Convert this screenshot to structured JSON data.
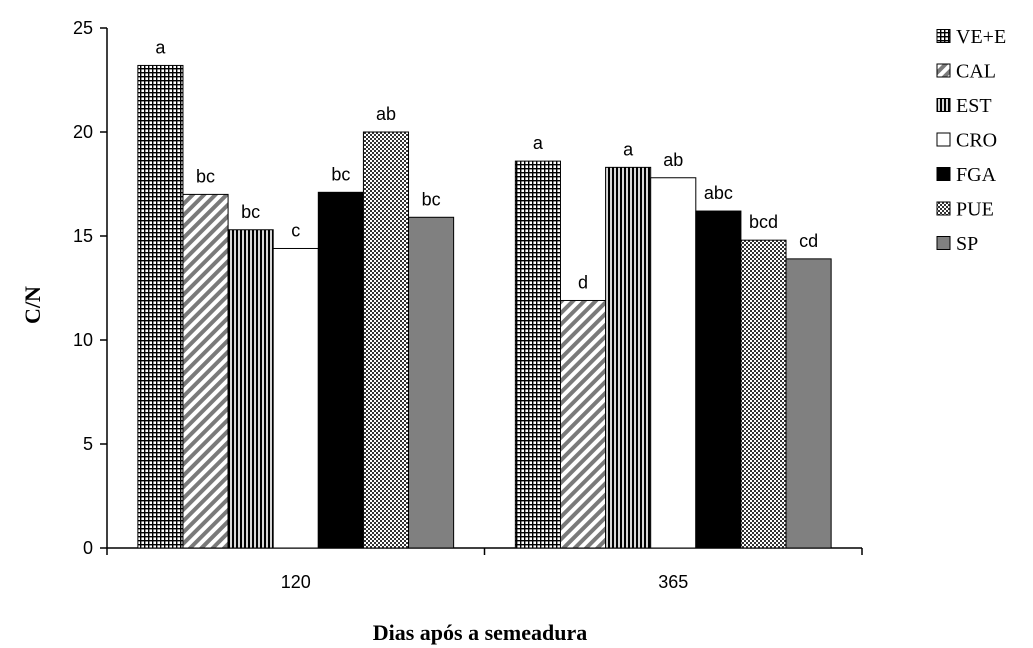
{
  "chart_data": {
    "type": "bar",
    "xlabel": "Dias após a semeadura",
    "ylabel": "C/N",
    "ylim": [
      0,
      25
    ],
    "yticks": [
      0,
      5,
      10,
      15,
      20,
      25
    ],
    "categories": [
      "120",
      "365"
    ],
    "series": [
      {
        "name": "VE+E",
        "values": [
          23.2,
          18.6
        ],
        "labels": [
          "a",
          "a"
        ],
        "pattern": "grid"
      },
      {
        "name": "CAL",
        "values": [
          17.0,
          11.9
        ],
        "labels": [
          "bc",
          "d"
        ],
        "pattern": "diagonal"
      },
      {
        "name": "EST",
        "values": [
          15.3,
          18.3
        ],
        "labels": [
          "bc",
          "a"
        ],
        "pattern": "vertical"
      },
      {
        "name": "CRO",
        "values": [
          14.4,
          17.8
        ],
        "labels": [
          "c",
          "ab"
        ],
        "pattern": "white"
      },
      {
        "name": "FGA",
        "values": [
          17.1,
          16.2
        ],
        "labels": [
          "bc",
          "abc"
        ],
        "pattern": "black"
      },
      {
        "name": "PUE",
        "values": [
          20.0,
          14.8
        ],
        "labels": [
          "ab",
          "bcd"
        ],
        "pattern": "checker"
      },
      {
        "name": "SP",
        "values": [
          15.9,
          13.9
        ],
        "labels": [
          "bc",
          "cd"
        ],
        "pattern": "gray"
      }
    ],
    "legend_position": "right",
    "grid": false
  }
}
